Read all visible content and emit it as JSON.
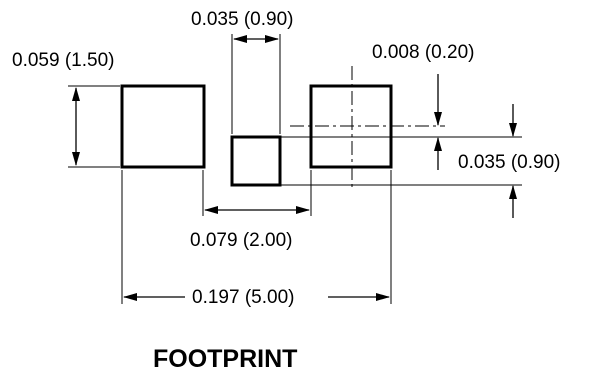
{
  "dimensions": {
    "pad_height": "0.059 (1.50)",
    "center_pad_width": "0.035 (0.90)",
    "offset": "0.008 (0.20)",
    "center_pad_height": "0.035 (0.90)",
    "pad_spacing": "0.079 (2.00)",
    "overall_width": "0.197 (5.00)"
  },
  "title": "FOOTPRINT"
}
